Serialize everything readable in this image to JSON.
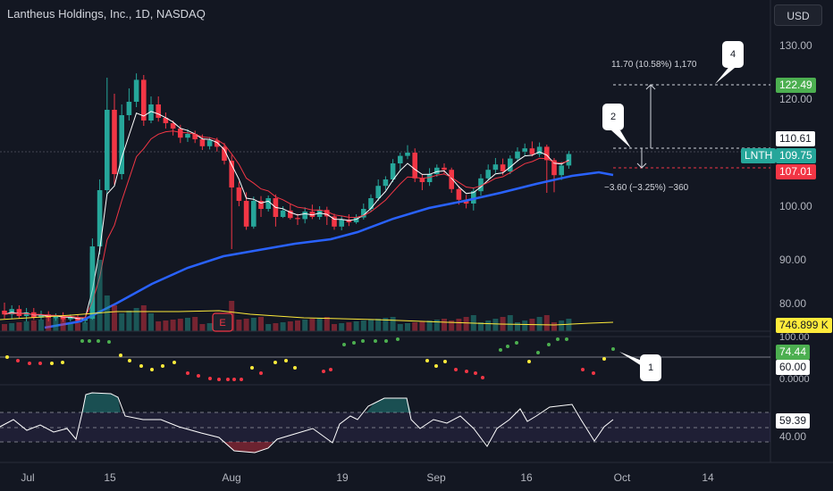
{
  "header": {
    "title": "Lantheus Holdings, Inc., 1D, NASDAQ",
    "currency": "USD"
  },
  "price_axis": {
    "ticks": [
      "130.00",
      "120.00",
      "100.00",
      "90.00",
      "80.00"
    ]
  },
  "price_tags": {
    "target": "122.49",
    "upper": "110.61",
    "symbol": "LNTH",
    "last": "109.75",
    "lower": "107.01"
  },
  "volume": {
    "label": "746.899 K"
  },
  "indicator1": {
    "ticks": [
      "100.00",
      "0.0000"
    ],
    "value": "74.44",
    "level": "60.00"
  },
  "indicator2": {
    "value": "59.39",
    "level": "40.00"
  },
  "time_axis": [
    "Jul",
    "15",
    "Aug",
    "19",
    "Sep",
    "16",
    "Oct",
    "14"
  ],
  "annotations": {
    "measure_up": "11.70 (10.58%) 1,170",
    "measure_down": "−3.60 (−3.25%) −360",
    "callouts": [
      "1",
      "2",
      "4"
    ]
  },
  "colors": {
    "up": "#26a69a",
    "down": "#f23645",
    "ema_fast": "#ffffff",
    "ema_slow": "#f23645",
    "sma_long": "#2962ff",
    "volume_ma": "#ffeb3b",
    "background": "#131722"
  },
  "icons": {
    "earnings": "earnings-marker-icon"
  }
}
